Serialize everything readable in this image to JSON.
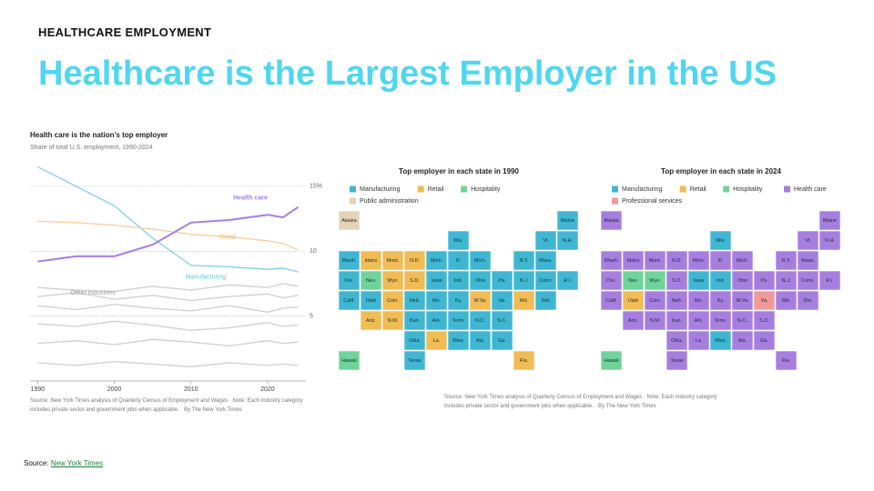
{
  "header": {
    "eyebrow": "HEALTHCARE EMPLOYMENT",
    "title": "Healthcare is the Largest Employer in the US"
  },
  "chart_data": {
    "type": "line",
    "title": "Health care is the nation’s top employer",
    "subtitle": "Share of total U.S. employment, 1990-2024",
    "x": [
      1990,
      1995,
      2000,
      2005,
      2010,
      2015,
      2020,
      2022,
      2024
    ],
    "xlim": [
      1989,
      2025
    ],
    "xticks": [
      1990,
      2000,
      2010,
      2020
    ],
    "ylim": [
      0,
      18
    ],
    "yticks": [
      5,
      10,
      {
        "value": 15,
        "label": "15%"
      }
    ],
    "grid": true,
    "series": [
      {
        "color": "#d0d0d0",
        "values": [
          7.2,
          7.0,
          6.9,
          7.3,
          7.0,
          7.4,
          7.2,
          7.5,
          7.3
        ]
      },
      {
        "color": "#d0d0d0",
        "values": [
          5.8,
          5.5,
          5.9,
          5.6,
          5.4,
          5.8,
          5.3,
          5.6,
          5.7
        ]
      },
      {
        "color": "#d0d0d0",
        "values": [
          4.4,
          4.2,
          4.6,
          4.3,
          3.9,
          4.1,
          4.5,
          4.2,
          4.3
        ]
      },
      {
        "color": "#d0d0d0",
        "values": [
          2.9,
          3.1,
          2.8,
          3.2,
          3.0,
          2.7,
          3.1,
          2.9,
          3.0
        ]
      },
      {
        "color": "#d0d0d0",
        "values": [
          1.4,
          1.2,
          1.5,
          1.3,
          1.1,
          1.4,
          1.2,
          1.3,
          1.2
        ]
      },
      {
        "name": "Other industries",
        "color": "#d0d0d0",
        "values": [
          6.5,
          6.8,
          6.3,
          6.6,
          6.2,
          6.5,
          6.7,
          6.4,
          6.6
        ]
      },
      {
        "name": "Manufacturing",
        "color": "#80cfe6",
        "values": [
          16.5,
          15.0,
          13.5,
          11.0,
          8.9,
          8.8,
          8.6,
          8.7,
          8.4
        ]
      },
      {
        "name": "Retail",
        "color": "#f6cf9a",
        "values": [
          12.3,
          12.2,
          12.0,
          11.7,
          11.3,
          11.1,
          10.8,
          10.6,
          10.1
        ]
      },
      {
        "name": "Health care",
        "color": "#a77ee0",
        "values": [
          9.2,
          9.6,
          9.6,
          10.5,
          12.2,
          12.4,
          12.8,
          12.6,
          13.4
        ]
      }
    ],
    "source_note": "Source: New York Times analysis of Quarterly Census of Employment and Wages · Note: Each industry category includes private sector and government jobs when applicable. · By The New York Times"
  },
  "maps": [
    {
      "title": "Top employer in each state in 1990",
      "legend": [
        {
          "name": "Manufacturing",
          "color": "#3fb7d3"
        },
        {
          "name": "Retail",
          "color": "#f2bc55"
        },
        {
          "name": "Hospitality",
          "color": "#6fd49a"
        },
        {
          "name": "Public administration",
          "color": "#e5d3b5"
        }
      ],
      "states": [
        {
          "label": "Alaska",
          "employer": "Public administration"
        },
        {
          "label": "Maine",
          "employer": "Manufacturing"
        },
        {
          "label": "Wis.",
          "employer": "Manufacturing"
        },
        {
          "label": "Vt.",
          "employer": "Manufacturing"
        },
        {
          "label": "N.H.",
          "employer": "Manufacturing"
        },
        {
          "label": "Wash.",
          "employer": "Manufacturing"
        },
        {
          "label": "Idaho",
          "employer": "Retail"
        },
        {
          "label": "Mont.",
          "employer": "Retail"
        },
        {
          "label": "N.D.",
          "employer": "Retail"
        },
        {
          "label": "Minn.",
          "employer": "Manufacturing"
        },
        {
          "label": "Ill.",
          "employer": "Manufacturing"
        },
        {
          "label": "Mich.",
          "employer": "Manufacturing"
        },
        {
          "label": "N.Y.",
          "employer": "Manufacturing"
        },
        {
          "label": "Mass.",
          "employer": "Manufacturing"
        },
        {
          "label": "Ore.",
          "employer": "Manufacturing"
        },
        {
          "label": "Nev.",
          "employer": "Hospitality"
        },
        {
          "label": "Wyo.",
          "employer": "Retail"
        },
        {
          "label": "S.D.",
          "employer": "Retail"
        },
        {
          "label": "Iowa",
          "employer": "Manufacturing"
        },
        {
          "label": "Ind.",
          "employer": "Manufacturing"
        },
        {
          "label": "Ohio",
          "employer": "Manufacturing"
        },
        {
          "label": "Pa.",
          "employer": "Manufacturing"
        },
        {
          "label": "N.J.",
          "employer": "Manufacturing"
        },
        {
          "label": "Conn.",
          "employer": "Manufacturing"
        },
        {
          "label": "R.I.",
          "employer": "Manufacturing"
        },
        {
          "label": "Calif.",
          "employer": "Manufacturing"
        },
        {
          "label": "Utah",
          "employer": "Manufacturing"
        },
        {
          "label": "Colo.",
          "employer": "Retail"
        },
        {
          "label": "Neb.",
          "employer": "Manufacturing"
        },
        {
          "label": "Mo.",
          "employer": "Manufacturing"
        },
        {
          "label": "Ky.",
          "employer": "Manufacturing"
        },
        {
          "label": "W.Va.",
          "employer": "Retail"
        },
        {
          "label": "Va.",
          "employer": "Manufacturing"
        },
        {
          "label": "Md.",
          "employer": "Retail"
        },
        {
          "label": "Del.",
          "employer": "Manufacturing"
        },
        {
          "label": "Ariz.",
          "employer": "Retail"
        },
        {
          "label": "N.M.",
          "employer": "Retail"
        },
        {
          "label": "Kan.",
          "employer": "Manufacturing"
        },
        {
          "label": "Ark.",
          "employer": "Manufacturing"
        },
        {
          "label": "Tenn.",
          "employer": "Manufacturing"
        },
        {
          "label": "N.C.",
          "employer": "Manufacturing"
        },
        {
          "label": "S.C.",
          "employer": "Manufacturing"
        },
        {
          "label": "Okla.",
          "employer": "Manufacturing"
        },
        {
          "label": "La.",
          "employer": "Retail"
        },
        {
          "label": "Miss.",
          "employer": "Manufacturing"
        },
        {
          "label": "Ala.",
          "employer": "Manufacturing"
        },
        {
          "label": "Ga.",
          "employer": "Manufacturing"
        },
        {
          "label": "Hawaii",
          "employer": "Hospitality"
        },
        {
          "label": "Texas",
          "employer": "Manufacturing"
        },
        {
          "label": "Fla.",
          "employer": "Retail"
        }
      ]
    },
    {
      "title": "Top employer in each state in 2024",
      "legend": [
        {
          "name": "Manufacturing",
          "color": "#3fb7d3"
        },
        {
          "name": "Retail",
          "color": "#f2bc55"
        },
        {
          "name": "Hospitality",
          "color": "#6fd49a"
        },
        {
          "name": "Health care",
          "color": "#a77ee0"
        },
        {
          "name": "Professional services",
          "color": "#f29a9a"
        }
      ],
      "states": [
        {
          "label": "Alaska",
          "employer": "Health care"
        },
        {
          "label": "Maine",
          "employer": "Health care"
        },
        {
          "label": "Wis.",
          "employer": "Manufacturing"
        },
        {
          "label": "Vt.",
          "employer": "Health care"
        },
        {
          "label": "N.H.",
          "employer": "Health care"
        },
        {
          "label": "Wash.",
          "employer": "Health care"
        },
        {
          "label": "Idaho",
          "employer": "Health care"
        },
        {
          "label": "Mont.",
          "employer": "Health care"
        },
        {
          "label": "N.D.",
          "employer": "Health care"
        },
        {
          "label": "Minn.",
          "employer": "Health care"
        },
        {
          "label": "Ill.",
          "employer": "Health care"
        },
        {
          "label": "Mich.",
          "employer": "Health care"
        },
        {
          "label": "N.Y.",
          "employer": "Health care"
        },
        {
          "label": "Mass.",
          "employer": "Health care"
        },
        {
          "label": "Ore.",
          "employer": "Health care"
        },
        {
          "label": "Nev.",
          "employer": "Hospitality"
        },
        {
          "label": "Wyo.",
          "employer": "Hospitality"
        },
        {
          "label": "S.D.",
          "employer": "Health care"
        },
        {
          "label": "Iowa",
          "employer": "Manufacturing"
        },
        {
          "label": "Ind.",
          "employer": "Manufacturing"
        },
        {
          "label": "Ohio",
          "employer": "Health care"
        },
        {
          "label": "Pa.",
          "employer": "Health care"
        },
        {
          "label": "N.J.",
          "employer": "Health care"
        },
        {
          "label": "Conn.",
          "employer": "Health care"
        },
        {
          "label": "R.I.",
          "employer": "Health care"
        },
        {
          "label": "Calif.",
          "employer": "Health care"
        },
        {
          "label": "Utah",
          "employer": "Retail"
        },
        {
          "label": "Colo.",
          "employer": "Health care"
        },
        {
          "label": "Neb.",
          "employer": "Health care"
        },
        {
          "label": "Mo.",
          "employer": "Health care"
        },
        {
          "label": "Ky.",
          "employer": "Health care"
        },
        {
          "label": "W.Va.",
          "employer": "Health care"
        },
        {
          "label": "Va.",
          "employer": "Professional services"
        },
        {
          "label": "Md.",
          "employer": "Health care"
        },
        {
          "label": "Del.",
          "employer": "Health care"
        },
        {
          "label": "Ariz.",
          "employer": "Health care"
        },
        {
          "label": "N.M.",
          "employer": "Health care"
        },
        {
          "label": "Kan.",
          "employer": "Health care"
        },
        {
          "label": "Ark.",
          "employer": "Health care"
        },
        {
          "label": "Tenn.",
          "employer": "Health care"
        },
        {
          "label": "N.C.",
          "employer": "Health care"
        },
        {
          "label": "S.C.",
          "employer": "Health care"
        },
        {
          "label": "Okla.",
          "employer": "Health care"
        },
        {
          "label": "La.",
          "employer": "Health care"
        },
        {
          "label": "Miss.",
          "employer": "Manufacturing"
        },
        {
          "label": "Ala.",
          "employer": "Health care"
        },
        {
          "label": "Ga.",
          "employer": "Health care"
        },
        {
          "label": "Hawaii",
          "employer": "Hospitality"
        },
        {
          "label": "Texas",
          "employer": "Health care"
        },
        {
          "label": "Fla.",
          "employer": "Health care"
        }
      ]
    }
  ],
  "maps_source_note": "Source: New York Times analysis of Quarterly Census of Employment and Wages · Note: Each industry category includes private sector and government jobs when applicable. · By The New York Times",
  "footer": {
    "label": "Source:",
    "link": "New York Times"
  }
}
